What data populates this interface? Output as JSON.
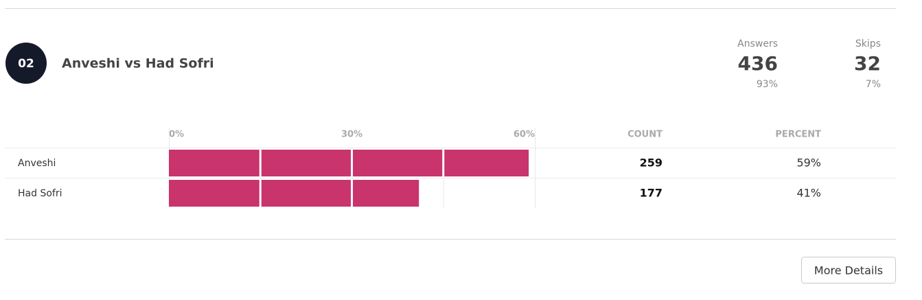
{
  "question": {
    "number": "02",
    "title": "Anveshi vs Had Sofri"
  },
  "stats": [
    {
      "label": "Answers",
      "value": 436,
      "percent": "93%"
    },
    {
      "label": "Skips",
      "value": 32,
      "percent": "7%"
    }
  ],
  "chart_data": {
    "type": "bar",
    "orientation": "horizontal",
    "categories": [
      "Anveshi",
      "Had Sofri"
    ],
    "values": [
      59,
      41
    ],
    "value_labels": [
      "59%",
      "41%"
    ],
    "color": "#c9346d",
    "xlim": [
      0,
      60
    ],
    "xticks": [
      {
        "value": 0,
        "label": "0%"
      },
      {
        "value": 30,
        "label": "30%"
      },
      {
        "value": 60,
        "label": "60%"
      }
    ],
    "minor_xticks": [
      15,
      45
    ],
    "grid": true
  },
  "table": {
    "headers": [
      "COUNT",
      "PERCENT"
    ],
    "counts": [
      259,
      177
    ]
  },
  "button": "More Details"
}
